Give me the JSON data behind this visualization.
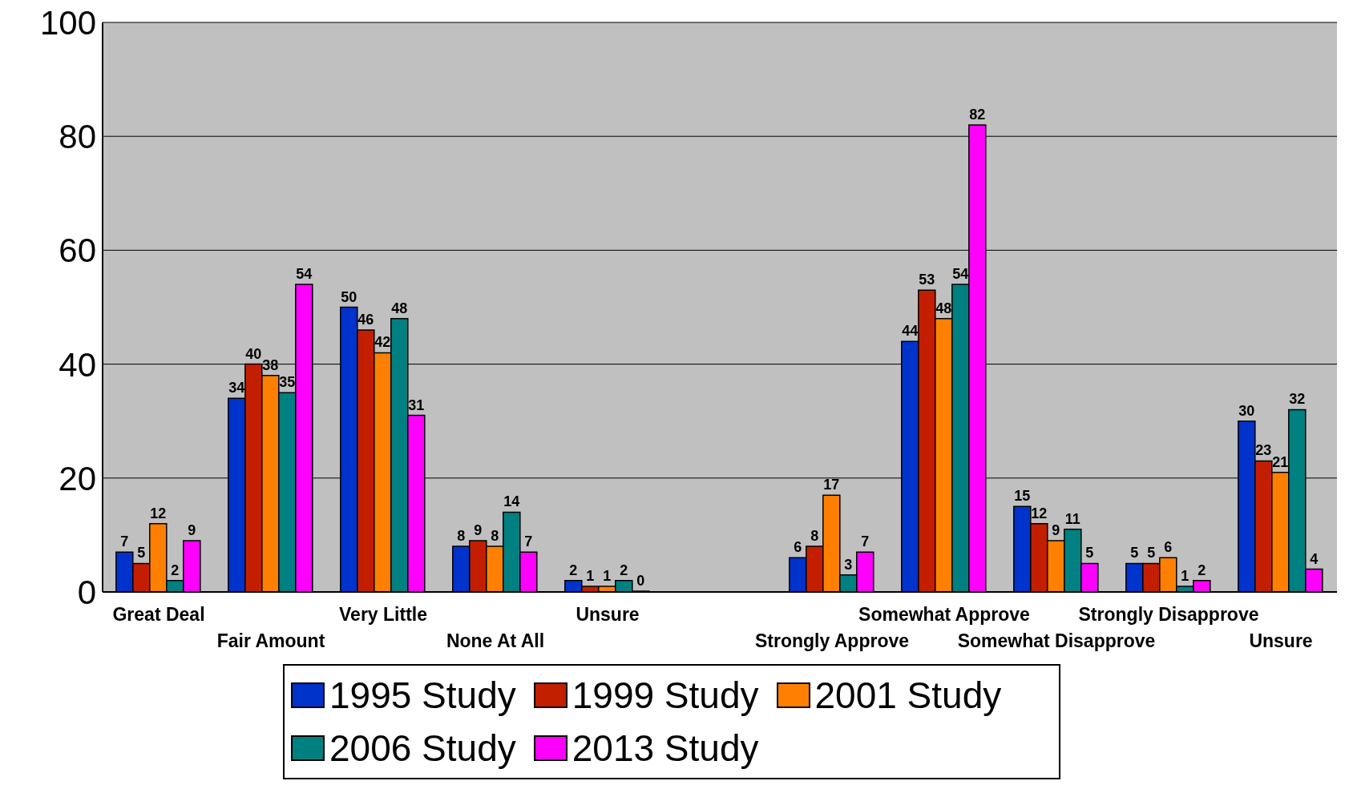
{
  "chart_data": {
    "type": "bar",
    "categories": [
      "Great Deal",
      "Fair Amount",
      "Very Little",
      "None At All",
      "Unsure",
      null,
      "Strongly Approve",
      "Somewhat Approve",
      "Somewhat Disapprove",
      "Strongly Disapprove",
      "Unsure"
    ],
    "series": [
      {
        "name": "1995 Study",
        "color": "#0033cc",
        "values": [
          7,
          34,
          50,
          8,
          2,
          null,
          6,
          44,
          15,
          5,
          30
        ]
      },
      {
        "name": "1999 Study",
        "color": "#c41e00",
        "values": [
          5,
          40,
          46,
          9,
          1,
          null,
          8,
          53,
          12,
          5,
          23
        ]
      },
      {
        "name": "2001 Study",
        "color": "#ff8000",
        "values": [
          12,
          38,
          42,
          8,
          1,
          null,
          17,
          48,
          9,
          6,
          21
        ]
      },
      {
        "name": "2006 Study",
        "color": "#008080",
        "values": [
          2,
          35,
          48,
          14,
          2,
          null,
          3,
          54,
          11,
          1,
          32
        ]
      },
      {
        "name": "2013 Study",
        "color": "#ff00ff",
        "values": [
          9,
          54,
          31,
          7,
          0,
          null,
          7,
          82,
          5,
          2,
          4
        ]
      }
    ],
    "ylim": [
      0,
      100
    ],
    "yticks": [
      0,
      20,
      40,
      60,
      80,
      100
    ],
    "grid": "y",
    "legend": "bottom",
    "data_labels": true
  }
}
